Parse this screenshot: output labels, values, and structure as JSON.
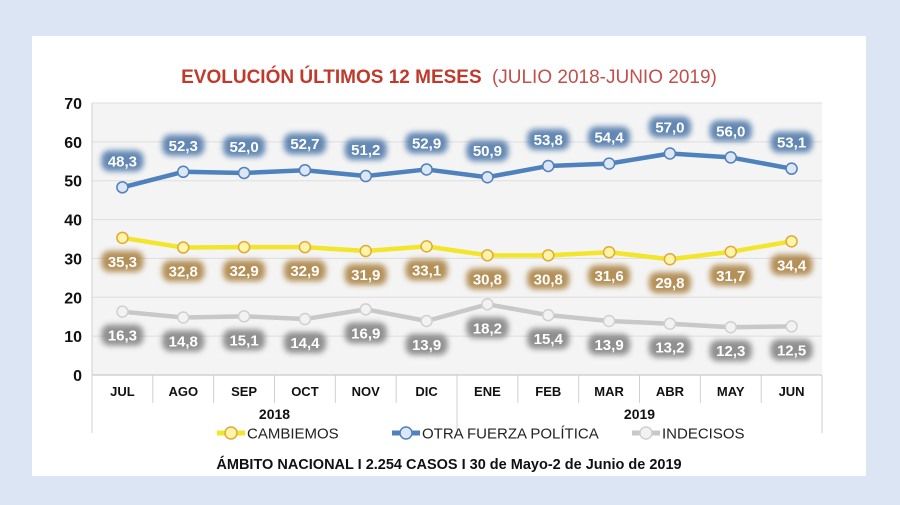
{
  "chart_data": {
    "type": "line",
    "title_bold": "EVOLUCIÓN ÚLTIMOS 12 MESES",
    "title_light": "(JULIO 2018-JUNIO 2019)",
    "xlabel": "",
    "ylabel": "",
    "categories": [
      "JUL",
      "AGO",
      "SEP",
      "OCT",
      "NOV",
      "DIC",
      "ENE",
      "FEB",
      "MAR",
      "ABR",
      "MAY",
      "JUN"
    ],
    "year_groups": [
      {
        "label": "2018",
        "start": 0,
        "end": 5
      },
      {
        "label": "2019",
        "start": 6,
        "end": 11
      }
    ],
    "ylim": [
      0,
      70
    ],
    "yticks": [
      0,
      10,
      20,
      30,
      40,
      50,
      60,
      70
    ],
    "grid": true,
    "legend_position": "bottom",
    "series": [
      {
        "name": "CAMBIEMOS",
        "color": "#f2e52a",
        "marker_fill": "#fff4a8",
        "marker_stroke": "#e0a93a",
        "label_bg": "#a97f3c",
        "label_position": "below",
        "values": [
          35.3,
          32.8,
          32.9,
          32.9,
          31.9,
          33.1,
          30.8,
          30.8,
          31.6,
          29.8,
          31.7,
          34.4
        ],
        "labels": [
          "35,3",
          "32,8",
          "32,9",
          "32,9",
          "31,9",
          "33,1",
          "30,8",
          "30,8",
          "31,6",
          "29,8",
          "31,7",
          "34,4"
        ]
      },
      {
        "name": "OTRA FUERZA POLÍTICA",
        "color": "#4f81bd",
        "marker_fill": "#dce6f4",
        "marker_stroke": "#4f81bd",
        "label_bg": "#4a74a8",
        "label_position": "above",
        "values": [
          48.3,
          52.3,
          52.0,
          52.7,
          51.2,
          52.9,
          50.9,
          53.8,
          54.4,
          57.0,
          56.0,
          53.1
        ],
        "labels": [
          "48,3",
          "52,3",
          "52,0",
          "52,7",
          "51,2",
          "52,9",
          "50,9",
          "53,8",
          "54,4",
          "57,0",
          "56,0",
          "53,1"
        ]
      },
      {
        "name": "INDECISOS",
        "color": "#c8c8c8",
        "marker_fill": "#f2f2f2",
        "marker_stroke": "#d0d0d0",
        "label_bg": "#7f7f7f",
        "label_position": "below",
        "values": [
          16.3,
          14.8,
          15.1,
          14.4,
          16.9,
          13.9,
          18.2,
          15.4,
          13.9,
          13.2,
          12.3,
          12.5
        ],
        "labels": [
          "16,3",
          "14,8",
          "15,1",
          "14,4",
          "16,9",
          "13,9",
          "18,2",
          "15,4",
          "13,9",
          "13,2",
          "12,3",
          "12,5"
        ]
      }
    ],
    "legend_order": [
      "CAMBIEMOS",
      "OTRA FUERZA POLÍTICA",
      "INDECISOS"
    ],
    "footer": "ÁMBITO NACIONAL I 2.254 CASOS I  30 de Mayo-2 de Junio de 2019"
  }
}
